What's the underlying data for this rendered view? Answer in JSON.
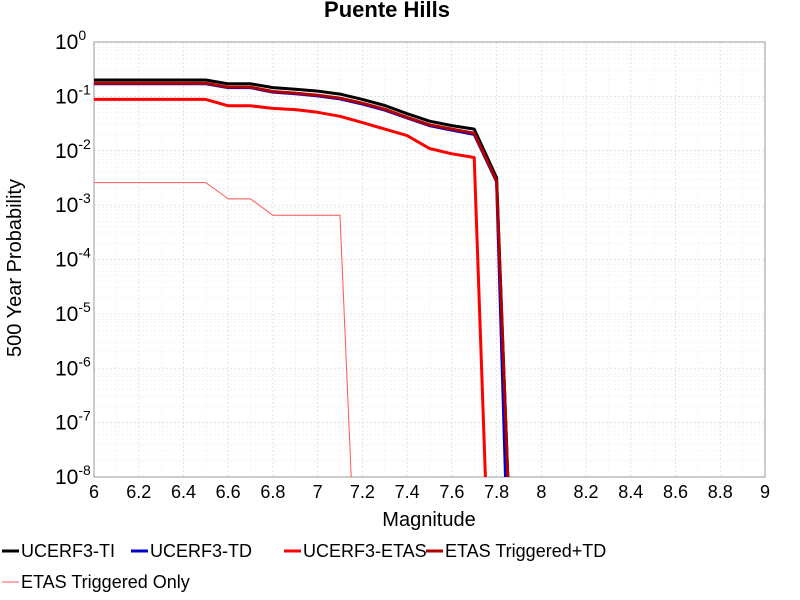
{
  "chart_data": {
    "type": "line",
    "title": "Puente Hills",
    "xlabel": "Magnitude",
    "ylabel": "500 Year Probability",
    "xlim": [
      6,
      9
    ],
    "ylim": [
      1e-08,
      1
    ],
    "yscale": "log",
    "grid": true,
    "legend_position": "bottom",
    "x_ticks": [
      "6",
      "6.2",
      "6.4",
      "6.6",
      "6.8",
      "7",
      "7.2",
      "7.4",
      "7.6",
      "7.8",
      "8",
      "8.2",
      "8.4",
      "8.6",
      "8.8",
      "9"
    ],
    "y_tick_exponents": [
      "0",
      "-1",
      "-2",
      "-3",
      "-4",
      "-5",
      "-6",
      "-7",
      "-8"
    ],
    "y_tick_base": "10",
    "series": [
      {
        "name": "UCERF3-TI",
        "color": "#000000",
        "width": 3,
        "points": [
          [
            6.0,
            0.2
          ],
          [
            6.5,
            0.2
          ],
          [
            6.6,
            0.17
          ],
          [
            6.7,
            0.17
          ],
          [
            6.8,
            0.145
          ],
          [
            6.9,
            0.135
          ],
          [
            7.0,
            0.125
          ],
          [
            7.1,
            0.11
          ],
          [
            7.2,
            0.088
          ],
          [
            7.3,
            0.068
          ],
          [
            7.4,
            0.048
          ],
          [
            7.5,
            0.035
          ],
          [
            7.6,
            0.029
          ],
          [
            7.7,
            0.025
          ],
          [
            7.8,
            0.0032
          ],
          [
            7.85,
            1e-08
          ]
        ]
      },
      {
        "name": "UCERF3-TD",
        "color": "#0000cc",
        "width": 3,
        "points": [
          [
            6.0,
            0.17
          ],
          [
            6.5,
            0.17
          ],
          [
            6.6,
            0.145
          ],
          [
            6.7,
            0.145
          ],
          [
            6.8,
            0.12
          ],
          [
            6.9,
            0.112
          ],
          [
            7.0,
            0.102
          ],
          [
            7.1,
            0.09
          ],
          [
            7.2,
            0.072
          ],
          [
            7.3,
            0.056
          ],
          [
            7.4,
            0.04
          ],
          [
            7.5,
            0.029
          ],
          [
            7.6,
            0.024
          ],
          [
            7.7,
            0.02
          ],
          [
            7.8,
            0.0027
          ],
          [
            7.84,
            1e-08
          ]
        ]
      },
      {
        "name": "UCERF3-ETAS",
        "color": "#ff0000",
        "width": 3,
        "points": [
          [
            6.0,
            0.088
          ],
          [
            6.5,
            0.088
          ],
          [
            6.6,
            0.067
          ],
          [
            6.7,
            0.067
          ],
          [
            6.8,
            0.06
          ],
          [
            6.9,
            0.057
          ],
          [
            7.0,
            0.051
          ],
          [
            7.1,
            0.043
          ],
          [
            7.2,
            0.033
          ],
          [
            7.3,
            0.025
          ],
          [
            7.4,
            0.019
          ],
          [
            7.5,
            0.011
          ],
          [
            7.6,
            0.0088
          ],
          [
            7.7,
            0.0075
          ],
          [
            7.75,
            1e-08
          ]
        ]
      },
      {
        "name": "ETAS Triggered+TD",
        "color": "#b00000",
        "width": 3,
        "points": [
          [
            6.0,
            0.175
          ],
          [
            6.5,
            0.175
          ],
          [
            6.6,
            0.148
          ],
          [
            6.7,
            0.148
          ],
          [
            6.8,
            0.123
          ],
          [
            6.9,
            0.115
          ],
          [
            7.0,
            0.105
          ],
          [
            7.1,
            0.093
          ],
          [
            7.2,
            0.075
          ],
          [
            7.3,
            0.058
          ],
          [
            7.4,
            0.041
          ],
          [
            7.5,
            0.03
          ],
          [
            7.6,
            0.025
          ],
          [
            7.7,
            0.021
          ],
          [
            7.8,
            0.0028
          ],
          [
            7.85,
            1e-08
          ]
        ]
      },
      {
        "name": "ETAS Triggered Only",
        "color": "#ff5555",
        "width": 1,
        "points": [
          [
            6.0,
            0.0026
          ],
          [
            6.5,
            0.0026
          ],
          [
            6.6,
            0.0013
          ],
          [
            6.7,
            0.0013
          ],
          [
            6.8,
            0.00065
          ],
          [
            7.1,
            0.00065
          ],
          [
            7.15,
            1e-08
          ]
        ]
      }
    ]
  }
}
